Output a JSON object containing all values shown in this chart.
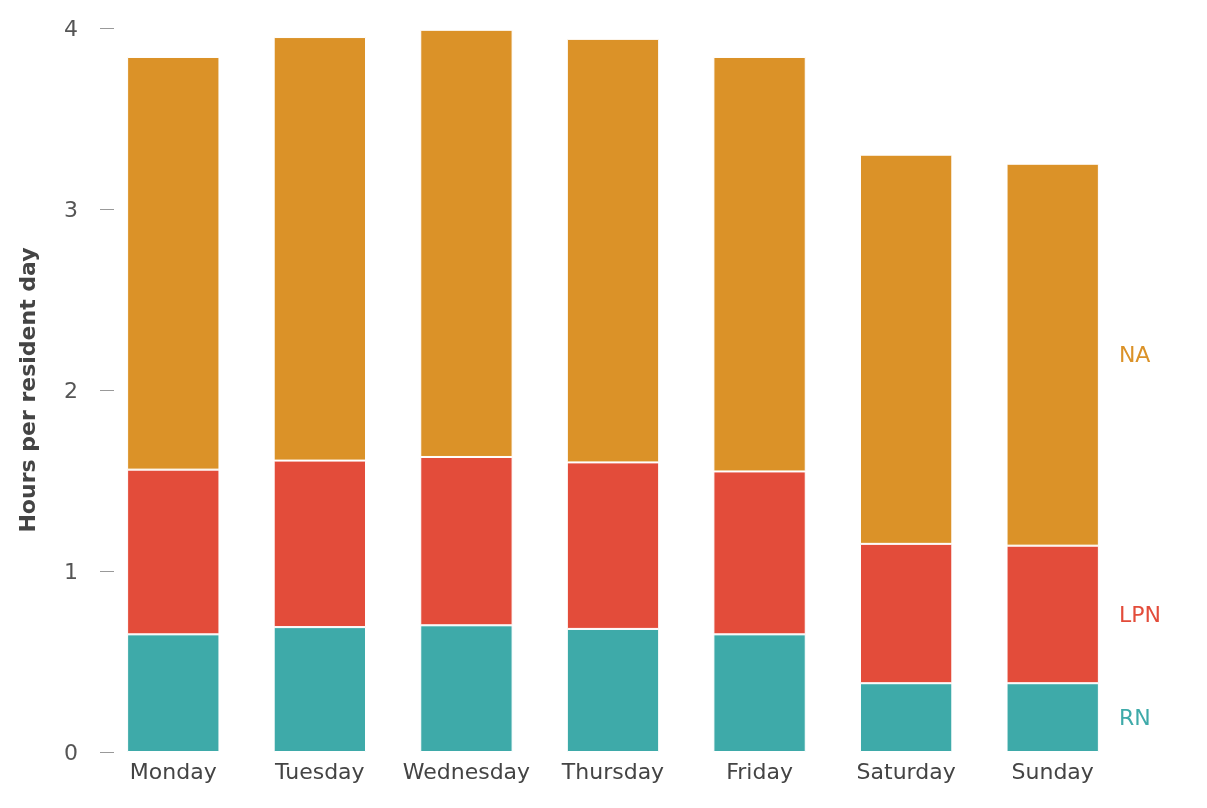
{
  "chart_data": {
    "type": "bar",
    "stacked": true,
    "ylabel": "Hours per resident day",
    "categories": [
      "Monday",
      "Tuesday",
      "Wednesday",
      "Thursday",
      "Friday",
      "Saturday",
      "Sunday"
    ],
    "series": [
      {
        "name": "RN",
        "color": "#3eaaa9",
        "values": [
          0.65,
          0.69,
          0.7,
          0.68,
          0.65,
          0.38,
          0.38
        ]
      },
      {
        "name": "LPN",
        "color": "#e34c3a",
        "values": [
          0.91,
          0.92,
          0.93,
          0.92,
          0.9,
          0.77,
          0.76
        ]
      },
      {
        "name": "NA",
        "color": "#db9228",
        "values": [
          2.28,
          2.34,
          2.36,
          2.34,
          2.29,
          2.15,
          2.11
        ]
      }
    ],
    "ylim": [
      0,
      4
    ],
    "yticks": [
      0,
      1,
      2,
      3,
      4
    ],
    "grid": false
  }
}
